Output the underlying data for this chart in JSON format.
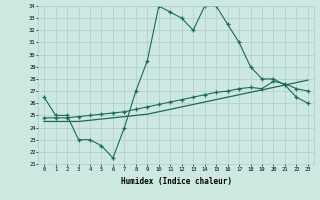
{
  "xlabel": "Humidex (Indice chaleur)",
  "x": [
    0,
    1,
    2,
    3,
    4,
    5,
    6,
    7,
    8,
    9,
    10,
    11,
    12,
    13,
    14,
    15,
    16,
    17,
    18,
    19,
    20,
    21,
    22,
    23
  ],
  "line1": [
    26.5,
    25.0,
    25.0,
    23.0,
    23.0,
    22.5,
    21.5,
    24.0,
    27.0,
    29.5,
    34.0,
    33.5,
    33.0,
    32.0,
    34.0,
    34.0,
    32.5,
    31.0,
    29.0,
    28.0,
    28.0,
    27.5,
    26.5,
    26.0
  ],
  "line2": [
    24.8,
    24.8,
    24.8,
    24.9,
    25.0,
    25.1,
    25.2,
    25.3,
    25.5,
    25.7,
    25.9,
    26.1,
    26.3,
    26.5,
    26.7,
    26.9,
    27.0,
    27.2,
    27.3,
    27.2,
    27.8,
    27.6,
    27.2,
    27.0
  ],
  "line3": [
    24.5,
    24.5,
    24.5,
    24.5,
    24.6,
    24.7,
    24.8,
    24.9,
    25.0,
    25.1,
    25.3,
    25.5,
    25.7,
    25.9,
    26.1,
    26.3,
    26.5,
    26.7,
    26.9,
    27.1,
    27.3,
    27.5,
    27.7,
    27.9
  ],
  "ylim": [
    21,
    34
  ],
  "xlim": [
    -0.5,
    23.5
  ],
  "bg_color": "#cce8e0",
  "line_color": "#1a6b5a",
  "grid_color": "#b0cccc"
}
